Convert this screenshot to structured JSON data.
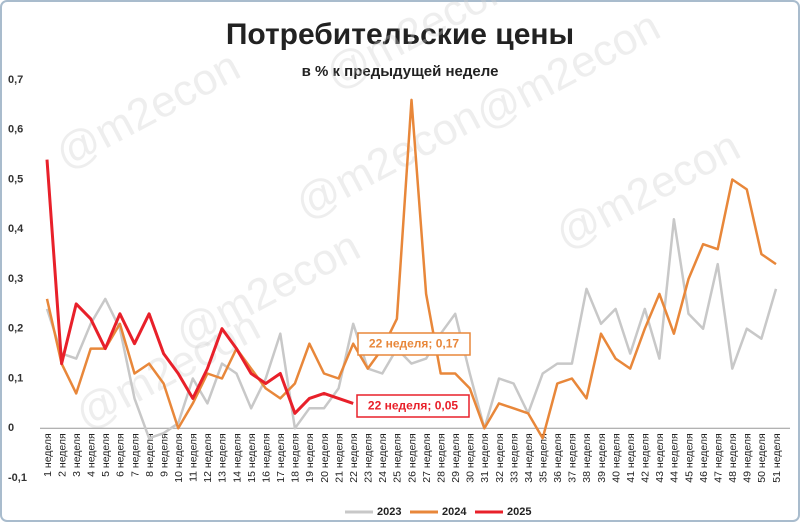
{
  "chart_data": {
    "type": "line",
    "title": "Потребительские цены",
    "subtitle": "в % к предыдущей неделе",
    "watermark": "@m2econ",
    "categories": [
      "1 неделя",
      "2 неделя",
      "3 неделя",
      "4 неделя",
      "5 неделя",
      "6 неделя",
      "7 неделя",
      "8 неделя",
      "9 неделя",
      "10 неделя",
      "11 неделя",
      "12 неделя",
      "13 неделя",
      "14 неделя",
      "15 неделя",
      "16 неделя",
      "17 неделя",
      "18 неделя",
      "19 неделя",
      "20 неделя",
      "21 неделя",
      "22 неделя",
      "23 неделя",
      "24 неделя",
      "25 неделя",
      "26 неделя",
      "27 неделя",
      "28 неделя",
      "29 неделя",
      "30 неделя",
      "31 неделя",
      "32 неделя",
      "33 неделя",
      "34 неделя",
      "35 неделя",
      "36 неделя",
      "37 неделя",
      "38 неделя",
      "39 неделя",
      "40 неделя",
      "41 неделя",
      "42 неделя",
      "43 неделя",
      "44 неделя",
      "45 неделя",
      "46 неделя",
      "47 неделя",
      "48 неделя",
      "49 неделя",
      "50 неделя",
      "51 неделя"
    ],
    "series": [
      {
        "name": "2023",
        "color": "#c8c8c8",
        "width": 2.5,
        "values": [
          0.24,
          0.15,
          0.14,
          0.21,
          0.26,
          0.2,
          0.06,
          -0.02,
          -0.01,
          0.01,
          0.1,
          0.05,
          0.13,
          0.11,
          0.04,
          0.1,
          0.19,
          0.0,
          0.04,
          0.04,
          0.08,
          0.21,
          0.12,
          0.11,
          0.16,
          0.13,
          0.14,
          0.19,
          0.23,
          0.11,
          0.0,
          0.1,
          0.09,
          0.03,
          0.11,
          0.13,
          0.13,
          0.28,
          0.21,
          0.24,
          0.15,
          0.24,
          0.14,
          0.42,
          0.23,
          0.2,
          0.33,
          0.12,
          0.2,
          0.18,
          0.28
        ]
      },
      {
        "name": "2024",
        "color": "#e8873a",
        "width": 2.5,
        "values": [
          0.26,
          0.13,
          0.07,
          0.16,
          0.16,
          0.21,
          0.11,
          0.13,
          0.09,
          0.0,
          0.05,
          0.11,
          0.1,
          0.16,
          0.12,
          0.08,
          0.06,
          0.09,
          0.17,
          0.11,
          0.1,
          0.17,
          0.12,
          0.16,
          0.22,
          0.66,
          0.27,
          0.11,
          0.11,
          0.08,
          0.0,
          0.05,
          0.04,
          0.03,
          -0.02,
          0.09,
          0.1,
          0.06,
          0.19,
          0.14,
          0.12,
          0.2,
          0.27,
          0.19,
          0.3,
          0.37,
          0.36,
          0.5,
          0.48,
          0.35,
          0.33
        ]
      },
      {
        "name": "2025",
        "color": "#e8202a",
        "width": 3,
        "values": [
          0.54,
          0.13,
          0.25,
          0.22,
          0.16,
          0.23,
          0.17,
          0.23,
          0.15,
          0.11,
          0.06,
          0.12,
          0.2,
          0.16,
          0.11,
          0.09,
          0.11,
          0.03,
          0.06,
          0.07,
          0.06,
          0.05,
          null,
          null,
          null,
          null,
          null,
          null,
          null,
          null,
          null,
          null,
          null,
          null,
          null,
          null,
          null,
          null,
          null,
          null,
          null,
          null,
          null,
          null,
          null,
          null,
          null,
          null,
          null,
          null,
          null
        ]
      }
    ],
    "annotations": [
      {
        "text": "22 неделя; 0,17",
        "series": 1,
        "index": 21
      },
      {
        "text": "22 неделя; 0,05",
        "series": 2,
        "index": 21
      }
    ],
    "ylim": [
      -0.1,
      0.7
    ],
    "yticks": [
      {
        "value": -0.1,
        "label": "-0,1"
      },
      0,
      {
        "value": 0.1,
        "label": "0,1"
      },
      {
        "value": 0.2,
        "label": "0,2"
      },
      {
        "value": 0.3,
        "label": "0,3"
      },
      {
        "value": 0.4,
        "label": "0,4"
      },
      {
        "value": 0.5,
        "label": "0,5"
      },
      {
        "value": 0.6,
        "label": "0,6"
      },
      {
        "value": 0.7,
        "label": "0,7"
      }
    ],
    "grid": false,
    "legend": "bottom"
  }
}
